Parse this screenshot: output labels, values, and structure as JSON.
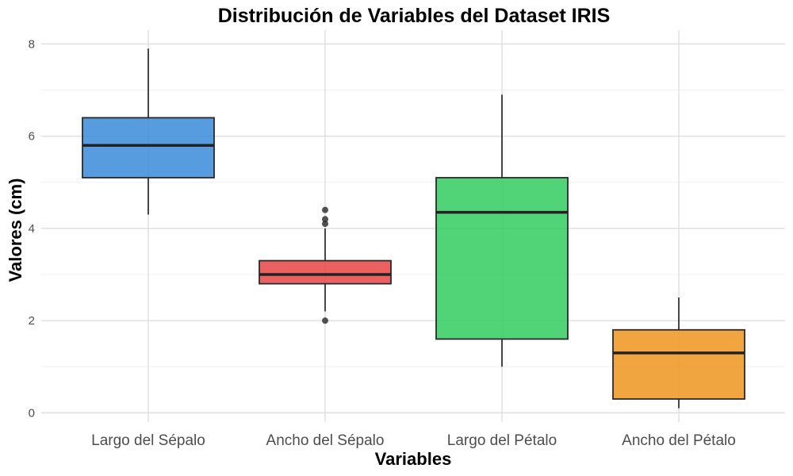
{
  "chart_data": {
    "type": "boxplot",
    "title": "Distribución de Variables del Dataset IRIS",
    "xlabel": "Variables",
    "ylabel": "Valores (cm)",
    "ylim": [
      -0.2,
      8.3
    ],
    "yticks": [
      "0",
      "2",
      "4",
      "6",
      "8"
    ],
    "grid": true,
    "legend": "none",
    "categories": [
      "Largo del Sépalo",
      "Ancho del Sépalo",
      "Largo del Pétalo",
      "Ancho del Pétalo"
    ],
    "boxes": [
      {
        "category": "Largo del Sépalo",
        "min": 4.3,
        "q1": 5.1,
        "median": 5.8,
        "q3": 6.4,
        "max": 7.9,
        "outliers": [],
        "color": "#3a8bd8"
      },
      {
        "category": "Ancho del Sépalo",
        "min": 2.2,
        "q1": 2.8,
        "median": 3.0,
        "q3": 3.3,
        "max": 4.0,
        "outliers": [
          2.0,
          4.1,
          4.2,
          4.4
        ],
        "color": "#e84545"
      },
      {
        "category": "Largo del Pétalo",
        "min": 1.0,
        "q1": 1.6,
        "median": 4.35,
        "q3": 5.1,
        "max": 6.9,
        "outliers": [],
        "color": "#33cc60"
      },
      {
        "category": "Ancho del Pétalo",
        "min": 0.1,
        "q1": 0.3,
        "median": 1.3,
        "q3": 1.8,
        "max": 2.5,
        "outliers": [],
        "color": "#ef9520"
      }
    ]
  }
}
